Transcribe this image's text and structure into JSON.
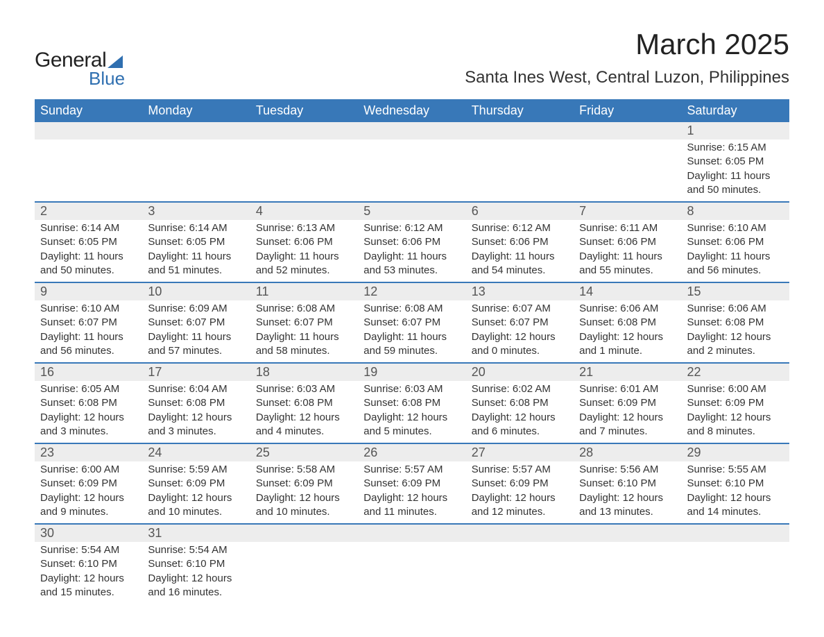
{
  "logo": {
    "text1": "General",
    "text2": "Blue"
  },
  "title": "March 2025",
  "location": "Santa Ines West, Central Luzon, Philippines",
  "style": {
    "header_bg": "#3878b8",
    "header_fg": "#ffffff",
    "daynum_bg": "#ededed",
    "border_color": "#3878b8",
    "body_fg": "#333333",
    "title_fontsize": 42,
    "location_fontsize": 24,
    "header_fontsize": 18,
    "daynum_fontsize": 18,
    "data_fontsize": 15
  },
  "weekdays": [
    "Sunday",
    "Monday",
    "Tuesday",
    "Wednesday",
    "Thursday",
    "Friday",
    "Saturday"
  ],
  "weeks": [
    [
      null,
      null,
      null,
      null,
      null,
      null,
      {
        "n": "1",
        "sunrise": "Sunrise: 6:15 AM",
        "sunset": "Sunset: 6:05 PM",
        "daylight": "Daylight: 11 hours and 50 minutes."
      }
    ],
    [
      {
        "n": "2",
        "sunrise": "Sunrise: 6:14 AM",
        "sunset": "Sunset: 6:05 PM",
        "daylight": "Daylight: 11 hours and 50 minutes."
      },
      {
        "n": "3",
        "sunrise": "Sunrise: 6:14 AM",
        "sunset": "Sunset: 6:05 PM",
        "daylight": "Daylight: 11 hours and 51 minutes."
      },
      {
        "n": "4",
        "sunrise": "Sunrise: 6:13 AM",
        "sunset": "Sunset: 6:06 PM",
        "daylight": "Daylight: 11 hours and 52 minutes."
      },
      {
        "n": "5",
        "sunrise": "Sunrise: 6:12 AM",
        "sunset": "Sunset: 6:06 PM",
        "daylight": "Daylight: 11 hours and 53 minutes."
      },
      {
        "n": "6",
        "sunrise": "Sunrise: 6:12 AM",
        "sunset": "Sunset: 6:06 PM",
        "daylight": "Daylight: 11 hours and 54 minutes."
      },
      {
        "n": "7",
        "sunrise": "Sunrise: 6:11 AM",
        "sunset": "Sunset: 6:06 PM",
        "daylight": "Daylight: 11 hours and 55 minutes."
      },
      {
        "n": "8",
        "sunrise": "Sunrise: 6:10 AM",
        "sunset": "Sunset: 6:06 PM",
        "daylight": "Daylight: 11 hours and 56 minutes."
      }
    ],
    [
      {
        "n": "9",
        "sunrise": "Sunrise: 6:10 AM",
        "sunset": "Sunset: 6:07 PM",
        "daylight": "Daylight: 11 hours and 56 minutes."
      },
      {
        "n": "10",
        "sunrise": "Sunrise: 6:09 AM",
        "sunset": "Sunset: 6:07 PM",
        "daylight": "Daylight: 11 hours and 57 minutes."
      },
      {
        "n": "11",
        "sunrise": "Sunrise: 6:08 AM",
        "sunset": "Sunset: 6:07 PM",
        "daylight": "Daylight: 11 hours and 58 minutes."
      },
      {
        "n": "12",
        "sunrise": "Sunrise: 6:08 AM",
        "sunset": "Sunset: 6:07 PM",
        "daylight": "Daylight: 11 hours and 59 minutes."
      },
      {
        "n": "13",
        "sunrise": "Sunrise: 6:07 AM",
        "sunset": "Sunset: 6:07 PM",
        "daylight": "Daylight: 12 hours and 0 minutes."
      },
      {
        "n": "14",
        "sunrise": "Sunrise: 6:06 AM",
        "sunset": "Sunset: 6:08 PM",
        "daylight": "Daylight: 12 hours and 1 minute."
      },
      {
        "n": "15",
        "sunrise": "Sunrise: 6:06 AM",
        "sunset": "Sunset: 6:08 PM",
        "daylight": "Daylight: 12 hours and 2 minutes."
      }
    ],
    [
      {
        "n": "16",
        "sunrise": "Sunrise: 6:05 AM",
        "sunset": "Sunset: 6:08 PM",
        "daylight": "Daylight: 12 hours and 3 minutes."
      },
      {
        "n": "17",
        "sunrise": "Sunrise: 6:04 AM",
        "sunset": "Sunset: 6:08 PM",
        "daylight": "Daylight: 12 hours and 3 minutes."
      },
      {
        "n": "18",
        "sunrise": "Sunrise: 6:03 AM",
        "sunset": "Sunset: 6:08 PM",
        "daylight": "Daylight: 12 hours and 4 minutes."
      },
      {
        "n": "19",
        "sunrise": "Sunrise: 6:03 AM",
        "sunset": "Sunset: 6:08 PM",
        "daylight": "Daylight: 12 hours and 5 minutes."
      },
      {
        "n": "20",
        "sunrise": "Sunrise: 6:02 AM",
        "sunset": "Sunset: 6:08 PM",
        "daylight": "Daylight: 12 hours and 6 minutes."
      },
      {
        "n": "21",
        "sunrise": "Sunrise: 6:01 AM",
        "sunset": "Sunset: 6:09 PM",
        "daylight": "Daylight: 12 hours and 7 minutes."
      },
      {
        "n": "22",
        "sunrise": "Sunrise: 6:00 AM",
        "sunset": "Sunset: 6:09 PM",
        "daylight": "Daylight: 12 hours and 8 minutes."
      }
    ],
    [
      {
        "n": "23",
        "sunrise": "Sunrise: 6:00 AM",
        "sunset": "Sunset: 6:09 PM",
        "daylight": "Daylight: 12 hours and 9 minutes."
      },
      {
        "n": "24",
        "sunrise": "Sunrise: 5:59 AM",
        "sunset": "Sunset: 6:09 PM",
        "daylight": "Daylight: 12 hours and 10 minutes."
      },
      {
        "n": "25",
        "sunrise": "Sunrise: 5:58 AM",
        "sunset": "Sunset: 6:09 PM",
        "daylight": "Daylight: 12 hours and 10 minutes."
      },
      {
        "n": "26",
        "sunrise": "Sunrise: 5:57 AM",
        "sunset": "Sunset: 6:09 PM",
        "daylight": "Daylight: 12 hours and 11 minutes."
      },
      {
        "n": "27",
        "sunrise": "Sunrise: 5:57 AM",
        "sunset": "Sunset: 6:09 PM",
        "daylight": "Daylight: 12 hours and 12 minutes."
      },
      {
        "n": "28",
        "sunrise": "Sunrise: 5:56 AM",
        "sunset": "Sunset: 6:10 PM",
        "daylight": "Daylight: 12 hours and 13 minutes."
      },
      {
        "n": "29",
        "sunrise": "Sunrise: 5:55 AM",
        "sunset": "Sunset: 6:10 PM",
        "daylight": "Daylight: 12 hours and 14 minutes."
      }
    ],
    [
      {
        "n": "30",
        "sunrise": "Sunrise: 5:54 AM",
        "sunset": "Sunset: 6:10 PM",
        "daylight": "Daylight: 12 hours and 15 minutes."
      },
      {
        "n": "31",
        "sunrise": "Sunrise: 5:54 AM",
        "sunset": "Sunset: 6:10 PM",
        "daylight": "Daylight: 12 hours and 16 minutes."
      },
      null,
      null,
      null,
      null,
      null
    ]
  ]
}
